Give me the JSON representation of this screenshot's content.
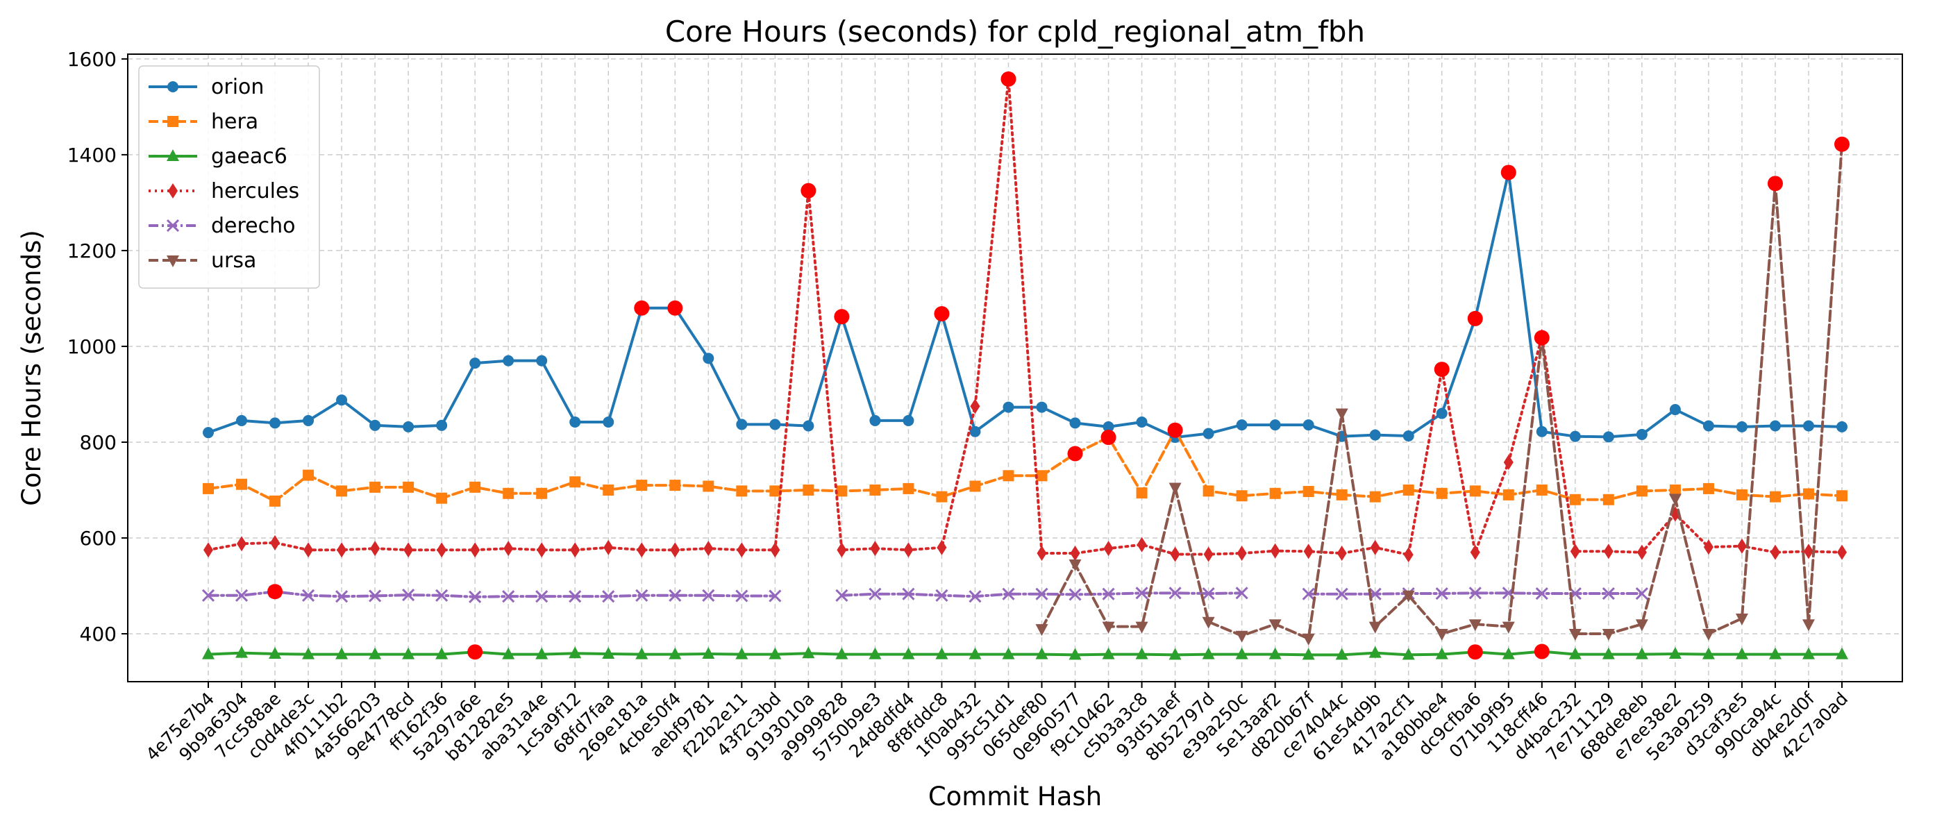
{
  "chart_data": {
    "type": "line",
    "title": "Core Hours (seconds) for cpld_regional_atm_fbh",
    "xlabel": "Commit Hash",
    "ylabel": "Core Hours (seconds)",
    "ylim": [
      300,
      1610
    ],
    "yticks": [
      400,
      600,
      800,
      1000,
      1200,
      1400,
      1600
    ],
    "grid": true,
    "legend_position": "top-left",
    "categories": [
      "4e75e7b4",
      "9b9a6304",
      "7cc588ae",
      "c0d4de3c",
      "4f0111b2",
      "4a566203",
      "9e4778cd",
      "ff162f36",
      "5a297a6e",
      "b81282e5",
      "aba31a4e",
      "1c5a9f12",
      "68fd7faa",
      "269e181a",
      "4cbe50f4",
      "aebf9781",
      "f22b2e11",
      "43f2c3bd",
      "9193010a",
      "a9999828",
      "5750b9e3",
      "24d8dfd4",
      "8f8fddc8",
      "1f0ab432",
      "995c51d1",
      "065def80",
      "0e960577",
      "f9c10462",
      "c5b3a3c8",
      "93d51aef",
      "8b52797d",
      "e39a250c",
      "5e13aaf2",
      "d820b67f",
      "ce74044c",
      "61e54d9b",
      "417a2cf1",
      "a180bbe4",
      "dc9cfba6",
      "071b9f95",
      "118cff46",
      "d4bac232",
      "7e711129",
      "688de8eb",
      "e7ee38e2",
      "5e3a9259",
      "d3caf3e5",
      "990ca94c",
      "db4e2d0f",
      "42c7a0ad"
    ],
    "series": [
      {
        "name": "orion",
        "color": "#1f77b4",
        "dash": "solid",
        "marker": "circle",
        "values": [
          820,
          845,
          840,
          845,
          888,
          835,
          832,
          835,
          965,
          970,
          970,
          842,
          842,
          1080,
          1080,
          975,
          837,
          837,
          834,
          1062,
          845,
          845,
          1068,
          822,
          873,
          873,
          840,
          832,
          842,
          810,
          818,
          836,
          836,
          836,
          812,
          815,
          813,
          860,
          1058,
          1363,
          822,
          812,
          811,
          816,
          868,
          834,
          832,
          834,
          834,
          832
        ]
      },
      {
        "name": "hera",
        "color": "#ff7f0e",
        "dash": "dashed",
        "marker": "square",
        "values": [
          703,
          712,
          677,
          731,
          698,
          706,
          706,
          683,
          706,
          693,
          693,
          717,
          700,
          710,
          710,
          708,
          698,
          698,
          700,
          698,
          700,
          703,
          686,
          708,
          730,
          730,
          776,
          810,
          694,
          825,
          698,
          688,
          693,
          697,
          690,
          686,
          700,
          693,
          698,
          690,
          700,
          680,
          680,
          698,
          700,
          703,
          690,
          686,
          692,
          688
        ]
      },
      {
        "name": "gaeac6",
        "color": "#2ca02c",
        "dash": "solid",
        "marker": "triangle-up",
        "values": [
          357,
          360,
          358,
          357,
          357,
          357,
          357,
          357,
          362,
          357,
          357,
          359,
          358,
          357,
          357,
          358,
          357,
          357,
          359,
          357,
          357,
          357,
          357,
          357,
          357,
          357,
          356,
          357,
          357,
          356,
          357,
          357,
          357,
          356,
          356,
          360,
          356,
          357,
          362,
          357,
          363,
          357,
          357,
          357,
          358,
          357,
          357,
          357,
          357,
          357
        ]
      },
      {
        "name": "hercules",
        "color": "#d62728",
        "dash": "dotted",
        "marker": "diamond",
        "values": [
          575,
          588,
          590,
          575,
          575,
          578,
          575,
          575,
          575,
          578,
          575,
          575,
          580,
          575,
          575,
          578,
          575,
          575,
          1325,
          575,
          578,
          575,
          580,
          875,
          1558,
          568,
          568,
          578,
          586,
          566,
          566,
          568,
          573,
          572,
          568,
          580,
          565,
          952,
          570,
          758,
          1020,
          572,
          572,
          570,
          650,
          581,
          583,
          570,
          572,
          570
        ]
      },
      {
        "name": "derecho",
        "color": "#9467bd",
        "dash": "dashdot",
        "marker": "x",
        "values": [
          480,
          480,
          488,
          480,
          478,
          479,
          481,
          480,
          477,
          478,
          478,
          478,
          478,
          480,
          480,
          480,
          479,
          479,
          null,
          480,
          483,
          483,
          480,
          478,
          483,
          483,
          482,
          483,
          485,
          485,
          484,
          485,
          null,
          483,
          483,
          483,
          484,
          484,
          485,
          485,
          484,
          484,
          484,
          484,
          null,
          null,
          null,
          null,
          null,
          null
        ]
      },
      {
        "name": "ursa",
        "color": "#8c564b",
        "dash": "dashed",
        "marker": "triangle-down",
        "values": [
          null,
          null,
          null,
          null,
          null,
          null,
          null,
          null,
          null,
          null,
          null,
          null,
          null,
          null,
          null,
          null,
          null,
          null,
          null,
          null,
          null,
          null,
          null,
          null,
          null,
          410,
          545,
          415,
          415,
          705,
          425,
          396,
          420,
          390,
          860,
          415,
          480,
          400,
          420,
          415,
          1018,
          400,
          400,
          420,
          682,
          400,
          432,
          1340,
          420,
          1422
        ]
      }
    ],
    "anomaly_color": "#ff0000",
    "anomalies": [
      {
        "series": "orion",
        "index": 13
      },
      {
        "series": "orion",
        "index": 14
      },
      {
        "series": "orion",
        "index": 19
      },
      {
        "series": "orion",
        "index": 22
      },
      {
        "series": "orion",
        "index": 38
      },
      {
        "series": "orion",
        "index": 39
      },
      {
        "series": "hera",
        "index": 26
      },
      {
        "series": "hera",
        "index": 27
      },
      {
        "series": "hera",
        "index": 29
      },
      {
        "series": "gaeac6",
        "index": 8
      },
      {
        "series": "gaeac6",
        "index": 38
      },
      {
        "series": "gaeac6",
        "index": 40
      },
      {
        "series": "hercules",
        "index": 18
      },
      {
        "series": "hercules",
        "index": 24
      },
      {
        "series": "hercules",
        "index": 37
      },
      {
        "series": "derecho",
        "index": 2
      },
      {
        "series": "ursa",
        "index": 40
      },
      {
        "series": "ursa",
        "index": 47
      },
      {
        "series": "ursa",
        "index": 49
      }
    ]
  }
}
